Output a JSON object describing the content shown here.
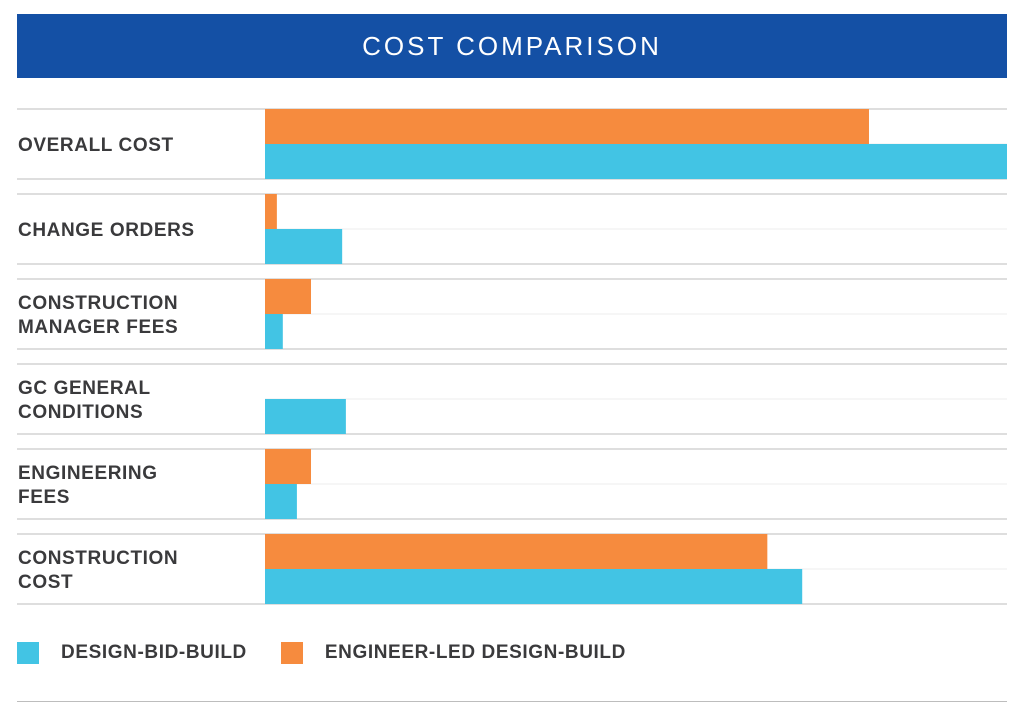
{
  "title": "COST COMPARISON",
  "colors": {
    "title_bg": "#1450a5",
    "design_bid_build": "#42c4e4",
    "engineer_led": "#f68b3e",
    "rule": "#bdbdbd",
    "label": "#3a3a3c"
  },
  "chart_data": {
    "type": "bar",
    "orientation": "horizontal",
    "title": "COST COMPARISON",
    "categories": [
      [
        "OVERALL COST"
      ],
      [
        "CHANGE ORDERS"
      ],
      [
        "CONSTRUCTION",
        "MANAGER FEES"
      ],
      [
        "GC GENERAL",
        "CONDITIONS"
      ],
      [
        "ENGINEERING",
        "FEES"
      ],
      [
        "CONSTRUCTION",
        "COST"
      ]
    ],
    "series": [
      {
        "name": "ENGINEER-LED DESIGN-BUILD",
        "color": "#f68b3e",
        "values": [
          81.4,
          1.6,
          6.2,
          0,
          6.2,
          67.7
        ]
      },
      {
        "name": "DESIGN-BID-BUILD",
        "color": "#42c4e4",
        "values": [
          100,
          10.4,
          2.4,
          10.9,
          4.3,
          72.4
        ]
      }
    ],
    "xlim": [
      0,
      100
    ],
    "grid": false,
    "legend_position": "bottom-left"
  },
  "legend": [
    {
      "label": "DESIGN-BID-BUILD",
      "color": "#42c4e4"
    },
    {
      "label": "ENGINEER-LED DESIGN-BUILD",
      "color": "#f68b3e"
    }
  ]
}
